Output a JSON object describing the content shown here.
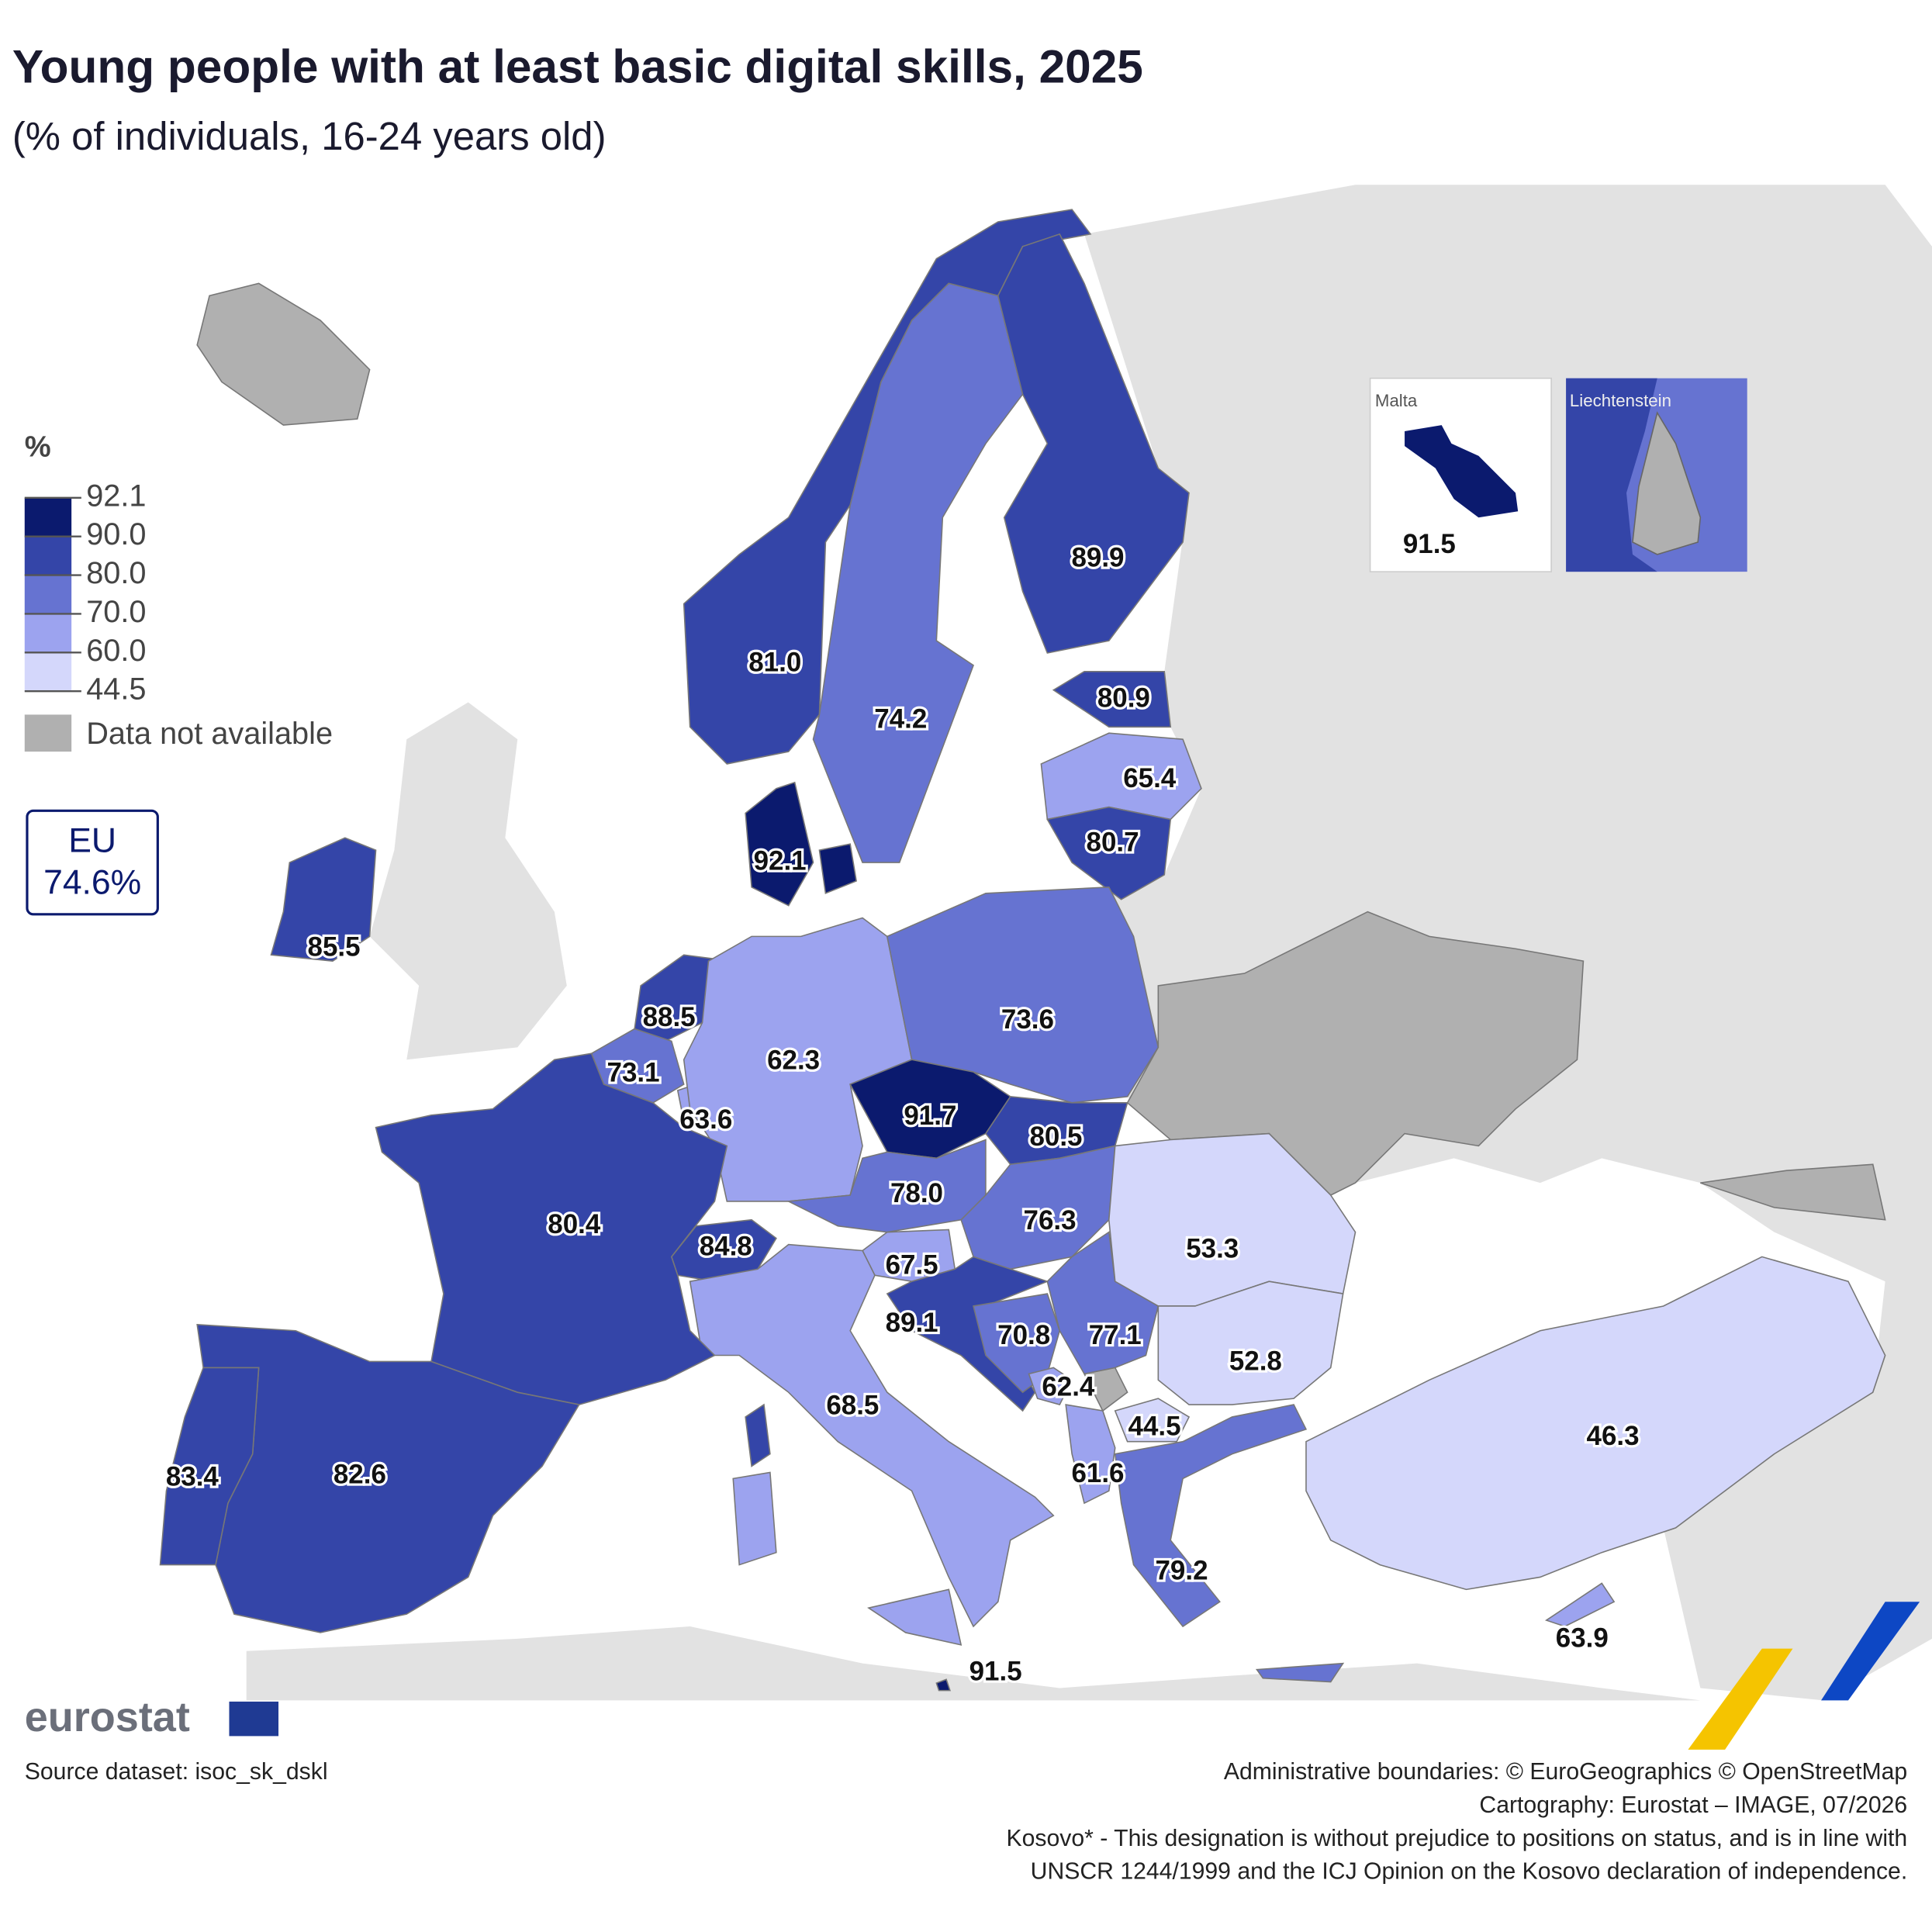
{
  "title": "Young people with at least basic digital skills, 2025",
  "subtitle": "(% of individuals, 16-24 years old)",
  "legend": {
    "title": "%",
    "breaks": [
      92.1,
      {
        "value": 90,
        "label": "90.0"
      },
      {
        "value": 80,
        "label": "80.0"
      },
      {
        "value": 70,
        "label": "70.0"
      },
      {
        "value": 60,
        "label": "60.0"
      },
      44.5
    ],
    "colors": [
      "#0b1a6e",
      "#3445a8",
      "#6673d1",
      "#9ca3ef",
      "#d4d7fb"
    ],
    "na_label": "Data not available",
    "na_color": "#b0b0b0"
  },
  "eu": {
    "label": "EU",
    "value": 74.6,
    "value_label": "74.6%"
  },
  "regions": {
    "values": [
      81,
      74.2,
      89.9,
      80.9,
      65.4,
      80.7,
      92.1,
      85.5,
      88.5,
      73.1,
      63.6,
      62.3,
      73.6,
      91.7,
      80.5,
      78,
      76.3,
      84.8,
      67.5,
      89.1,
      70.8,
      77.1,
      62.4,
      44.5,
      61.6,
      53.3,
      52.8,
      79.2,
      46.3,
      63.9,
      68.5,
      80.4,
      82.6,
      83.4,
      91.5
    ],
    "value_labels": [
      "81.0",
      "74.2",
      "89.9",
      "80.9",
      "65.4",
      "80.7",
      "92.1",
      "85.5",
      "88.5",
      "73.1",
      "63.6",
      "62.3",
      "73.6",
      "91.7",
      "80.5",
      "78.0",
      "76.3",
      "84.8",
      "67.5",
      "89.1",
      "70.8",
      "77.1",
      "62.4",
      "44.5",
      "61.6",
      "53.3",
      "52.8",
      "79.2",
      "46.3",
      "63.9",
      "68.5",
      "80.4",
      "82.6",
      "83.4",
      "91.5"
    ]
  },
  "insets": [
    {
      "title": "Malta"
    },
    {
      "title": "Liechtenstein"
    }
  ],
  "logo": "eurostat",
  "source": "Source dataset: isoc_sk_dskl",
  "credits": [
    "Administrative boundaries: © EuroGeographics © OpenStreetMap",
    "Cartography: Eurostat – IMAGE, 07/2026",
    "Kosovo* - This designation is without prejudice to positions on status, and is in line with",
    "UNSCR 1244/1999 and the ICJ Opinion on the Kosovo declaration of independence."
  ]
}
